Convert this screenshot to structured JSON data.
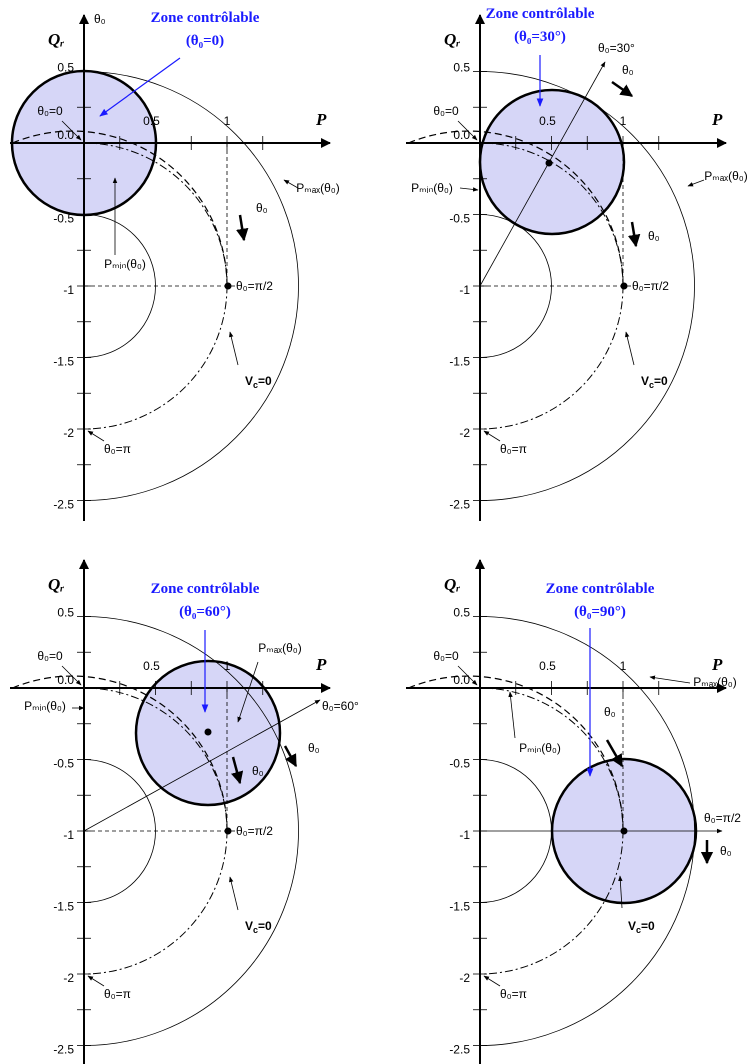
{
  "axes": {
    "p": "P",
    "q": "Qᵣ",
    "p_ticks": [
      "0.5",
      "1"
    ],
    "q_ticks": [
      "0.5",
      "0.0",
      "-0.5",
      "-1",
      "-1.5",
      "-2",
      "-2.5"
    ]
  },
  "labels": {
    "theta0": "θ₀",
    "theta0_zero": "θ₀=0",
    "theta0_half_pi": "θ₀=π/2",
    "theta0_pi": "θ₀=π",
    "pmax": "Pₘₐₓ(θ₀)",
    "pmin": "Pₘᵢₙ(θ₀)",
    "vc": {
      "main": "V",
      "sub": "c",
      "rest": "=0"
    }
  },
  "panels": [
    {
      "title": "Zone contrôlable",
      "angle": "(θ₀=0)"
    },
    {
      "title": "Zone contrôlable",
      "angle": "(θ₀=30°)",
      "ray_label": "θ₀=30°"
    },
    {
      "title": "Zone contrôlable",
      "angle": "(θ₀=60°)",
      "ray_label": "θ₀=60°"
    },
    {
      "title": "Zone contrôlable",
      "angle": "(θ₀=90°)"
    }
  ]
}
